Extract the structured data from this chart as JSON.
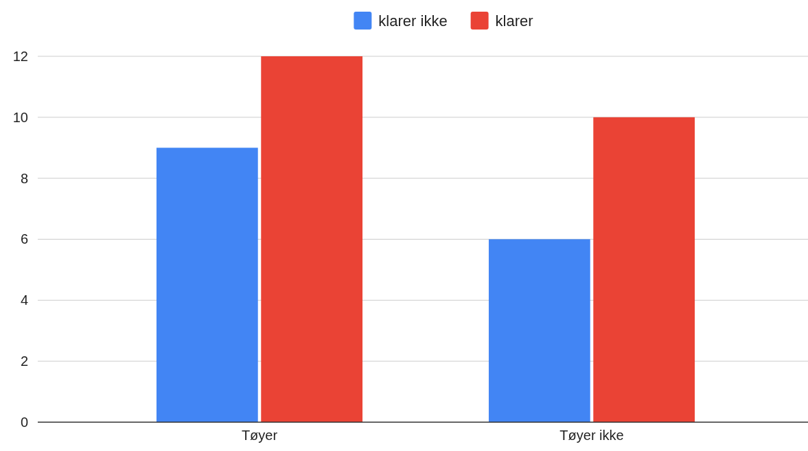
{
  "chart_data": {
    "type": "bar",
    "categories": [
      "Tøyer",
      "Tøyer ikke"
    ],
    "series": [
      {
        "name": "klarer ikke",
        "color": "#4285f4",
        "values": [
          9,
          6
        ]
      },
      {
        "name": "klarer",
        "color": "#ea4335",
        "values": [
          12,
          10
        ]
      }
    ],
    "ylim": [
      0,
      12
    ],
    "yticks": [
      0,
      2,
      4,
      6,
      8,
      10,
      12
    ],
    "grid": "y",
    "legend": "top"
  }
}
